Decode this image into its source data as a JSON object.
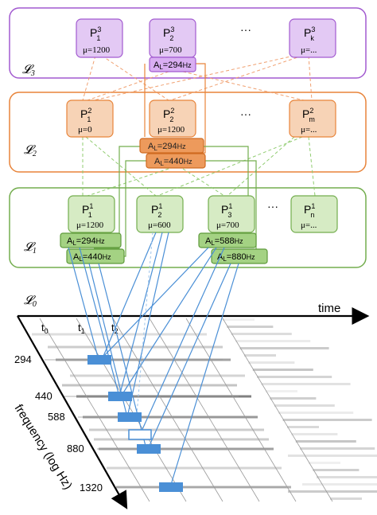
{
  "layers": {
    "l3": {
      "label": "𝓛3"
    },
    "l2": {
      "label": "𝓛2"
    },
    "l1": {
      "label": "𝓛1"
    },
    "l0": {
      "label": "𝓛0"
    }
  },
  "colors": {
    "l3_border": "#a25ad0",
    "l3_fill": "#e3c9f4",
    "l3_box": "#c37de8",
    "l2_border": "#e8843a",
    "l2_fill": "#f7d3b6",
    "l2_box": "#ed9a5c",
    "l1_border": "#73ad4e",
    "l1_fill": "#d6ebc4",
    "l1_box": "#80b85b",
    "blue": "#4a8fd6",
    "orange_dash": "#f0a070",
    "green_dash": "#90cc70"
  },
  "l3": {
    "p1": {
      "label": "P",
      "sup": "3",
      "sub": "1",
      "mu": "μ=1200"
    },
    "p2": {
      "label": "P",
      "sup": "3",
      "sub": "2",
      "mu": "μ=700"
    },
    "ellipsis": "···",
    "pk": {
      "label": "P",
      "sup": "3",
      "sub": "k",
      "mu": "μ=..."
    },
    "anno": {
      "text": "A",
      "sub": "L",
      "val": "=294",
      "unit": "Hz"
    }
  },
  "l2": {
    "p1": {
      "label": "P",
      "sup": "2",
      "sub": "1",
      "mu": "μ=0"
    },
    "p2": {
      "label": "P",
      "sup": "2",
      "sub": "2",
      "mu": "μ=1200"
    },
    "ellipsis": "···",
    "pm": {
      "label": "P",
      "sup": "2",
      "sub": "m",
      "mu": "μ=..."
    },
    "anno1": {
      "text": "A",
      "sub": "L",
      "val": "=294",
      "unit": "Hz"
    },
    "anno2": {
      "text": "A",
      "sub": "L",
      "val": "=440",
      "unit": "Hz"
    }
  },
  "l1": {
    "p1": {
      "label": "P",
      "sup": "1",
      "sub": "1",
      "mu": "μ=1200"
    },
    "p2": {
      "label": "P",
      "sup": "1",
      "sub": "2",
      "mu": "μ=600"
    },
    "p3": {
      "label": "P",
      "sup": "1",
      "sub": "3",
      "mu": "μ=700"
    },
    "ellipsis": "···",
    "pn": {
      "label": "P",
      "sup": "1",
      "sub": "n",
      "mu": "μ=..."
    },
    "anno1": {
      "text": "A",
      "sub": "L",
      "val": "=294",
      "unit": "Hz"
    },
    "anno2": {
      "text": "A",
      "sub": "L",
      "val": "=440",
      "unit": "Hz"
    },
    "anno3": {
      "text": "A",
      "sub": "L",
      "val": "=588",
      "unit": "Hz"
    },
    "anno4": {
      "text": "A",
      "sub": "L",
      "val": "=880",
      "unit": "Hz"
    }
  },
  "axes": {
    "time_label": "time",
    "freq_label": "frequency (log Hz)",
    "t0": "t",
    "t0_sub": "0",
    "t1": "t",
    "t1_sub": "1",
    "t2": "t",
    "t2_sub": "2",
    "freqs": [
      "294",
      "440",
      "588",
      "880",
      "1320"
    ]
  }
}
